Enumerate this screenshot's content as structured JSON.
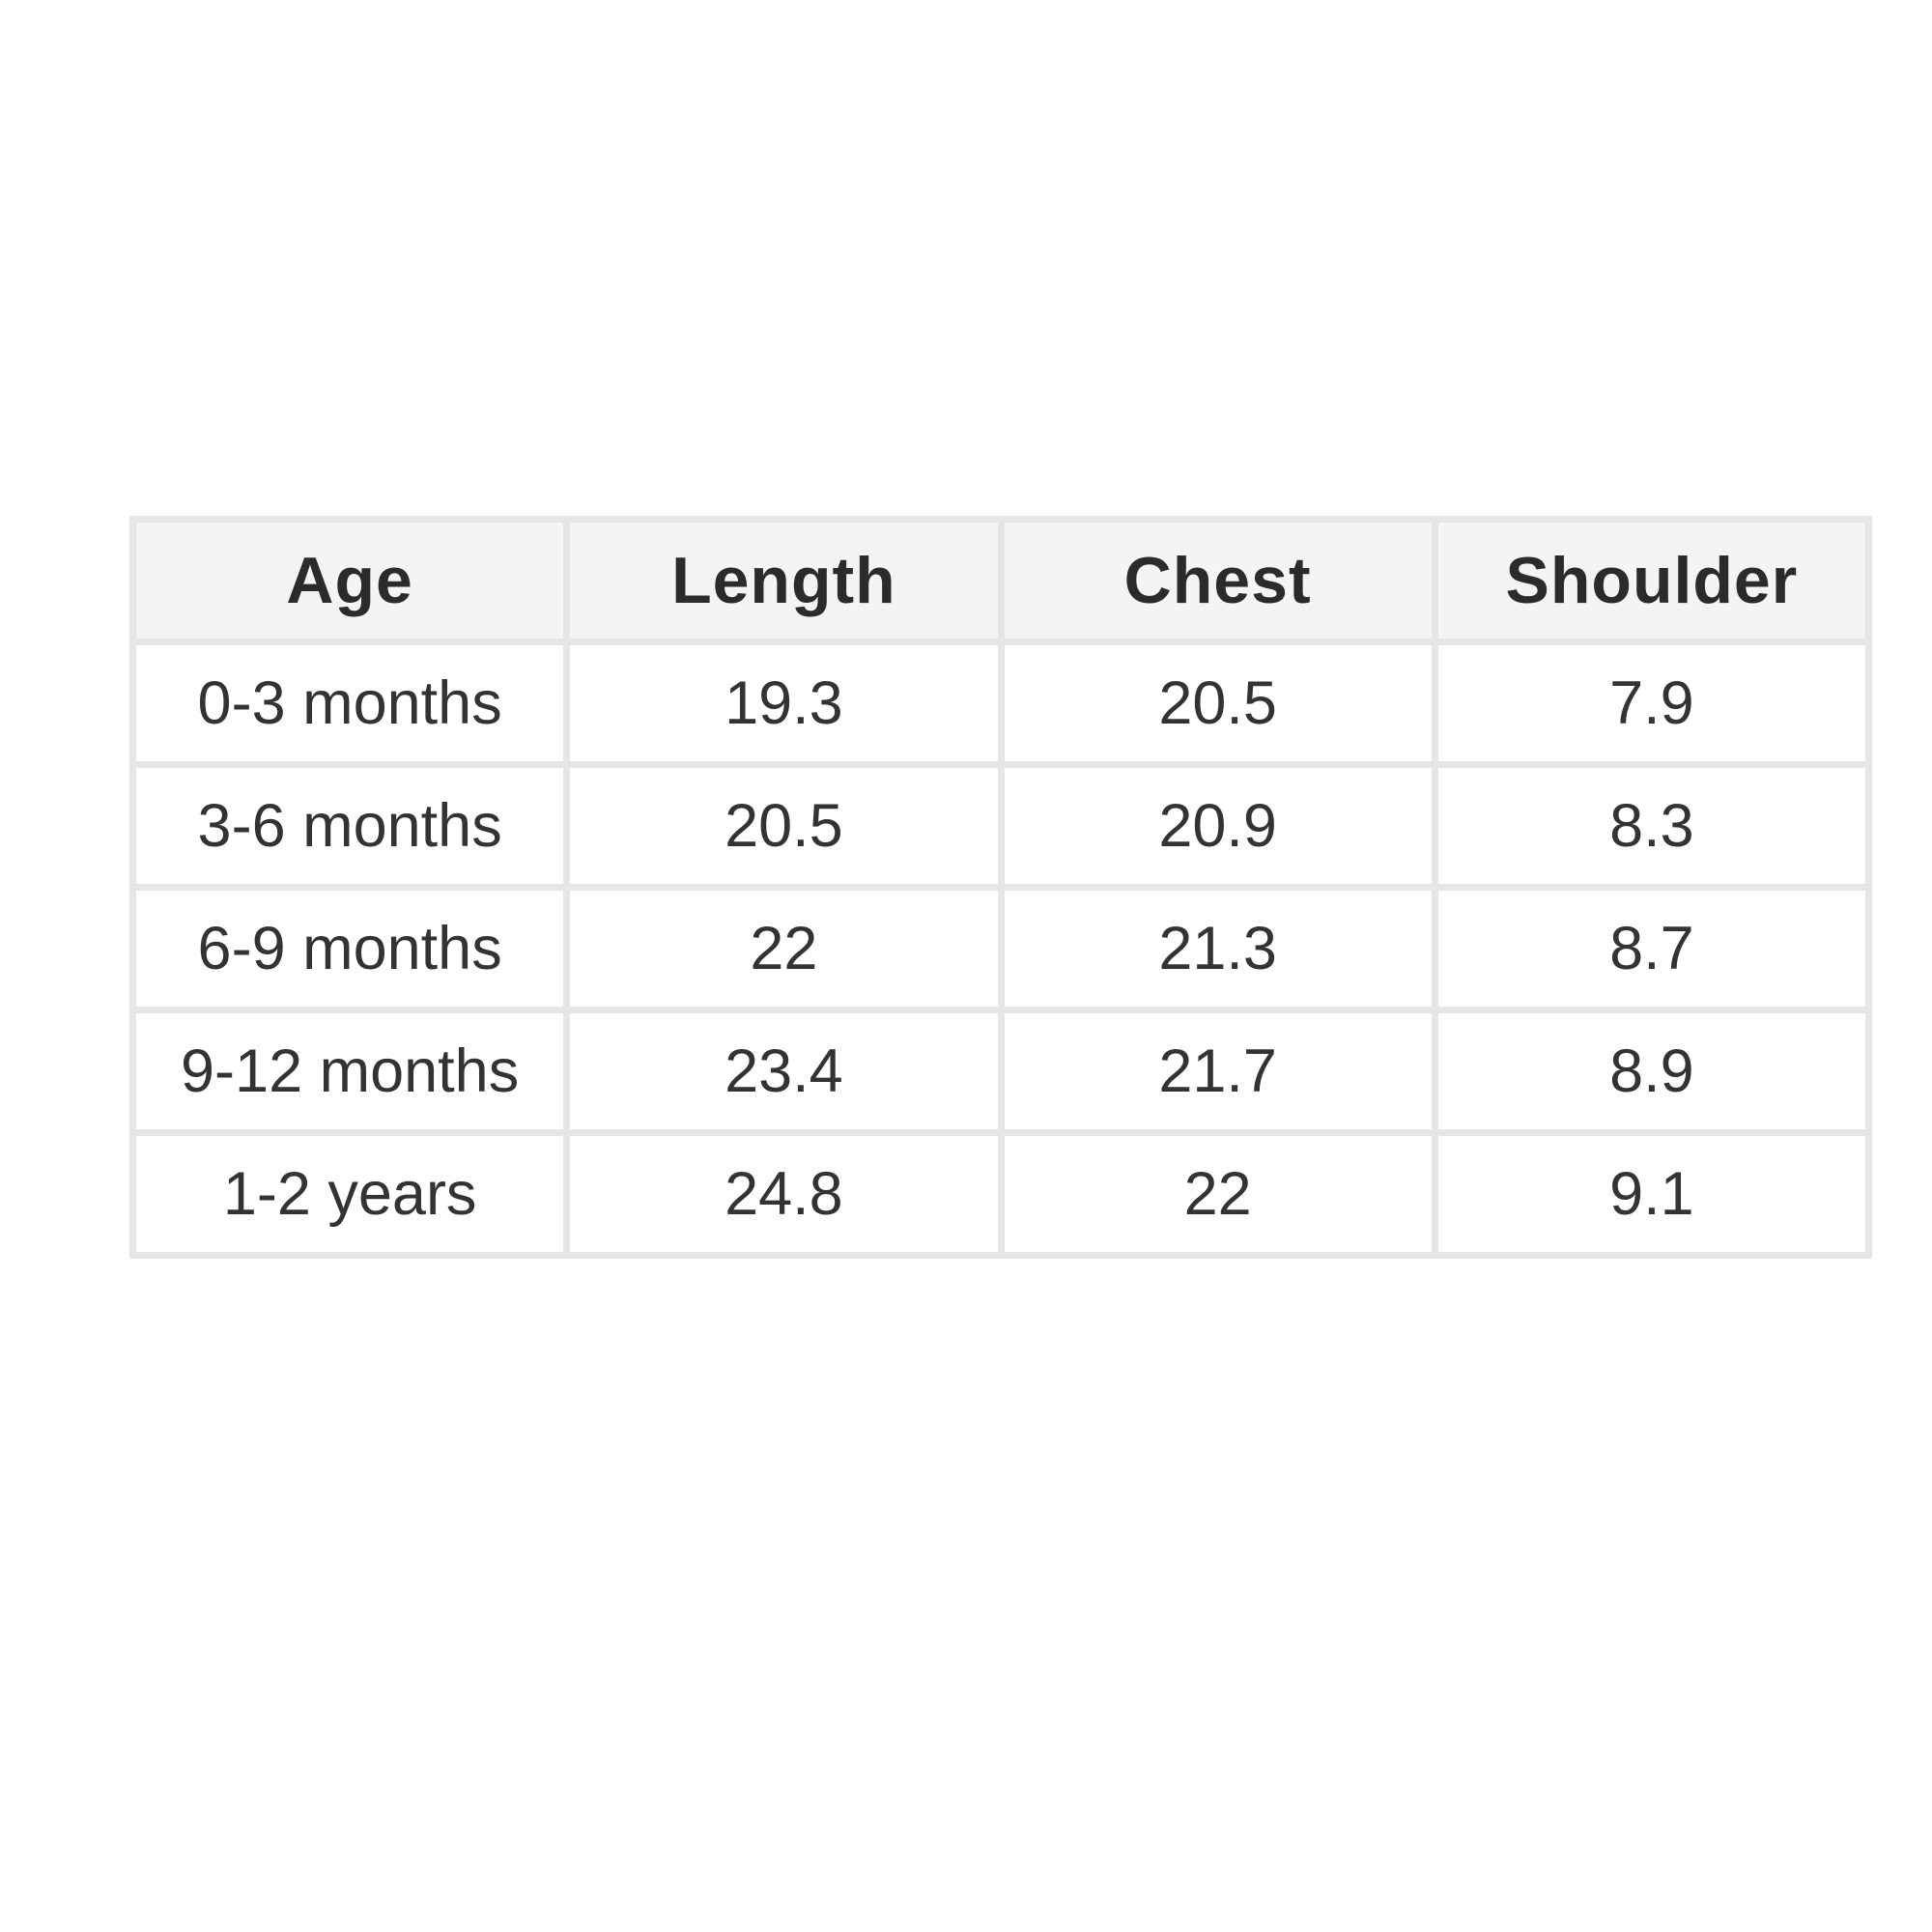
{
  "table": {
    "headers": [
      "Age",
      "Length",
      "Chest",
      "Shoulder"
    ],
    "rows": [
      [
        "0-3 months",
        "19.3",
        "20.5",
        "7.9"
      ],
      [
        "3-6 months",
        "20.5",
        "20.9",
        "8.3"
      ],
      [
        "6-9 months",
        "22",
        "21.3",
        "8.7"
      ],
      [
        "9-12 months",
        "23.4",
        "21.7",
        "8.9"
      ],
      [
        "1-2 years",
        "24.8",
        "22",
        "9.1"
      ]
    ]
  },
  "colors": {
    "border": "#e6e6e6",
    "header_background": "#f4f4f4",
    "text": "#333333"
  }
}
